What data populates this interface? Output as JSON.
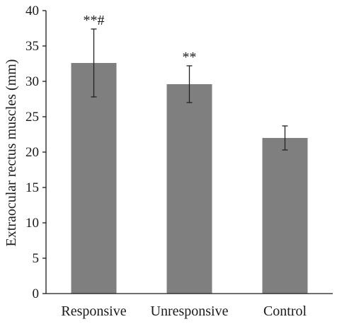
{
  "chart_data": {
    "type": "bar",
    "title": "",
    "xlabel": "",
    "ylabel": "Extraocular rectus muscles (mm)",
    "ylim": [
      0,
      40
    ],
    "yticks": [
      0,
      5,
      10,
      15,
      20,
      25,
      30,
      35,
      40
    ],
    "grid": false,
    "categories": [
      "Responsive",
      "Unresponsive",
      "Control"
    ],
    "values": [
      32.6,
      29.6,
      22.0
    ],
    "error": [
      4.8,
      2.6,
      1.7
    ],
    "annotations": [
      "**#",
      "**",
      ""
    ],
    "bar_color": "#7f7f7f",
    "axis_color": "#1a1a1a"
  }
}
